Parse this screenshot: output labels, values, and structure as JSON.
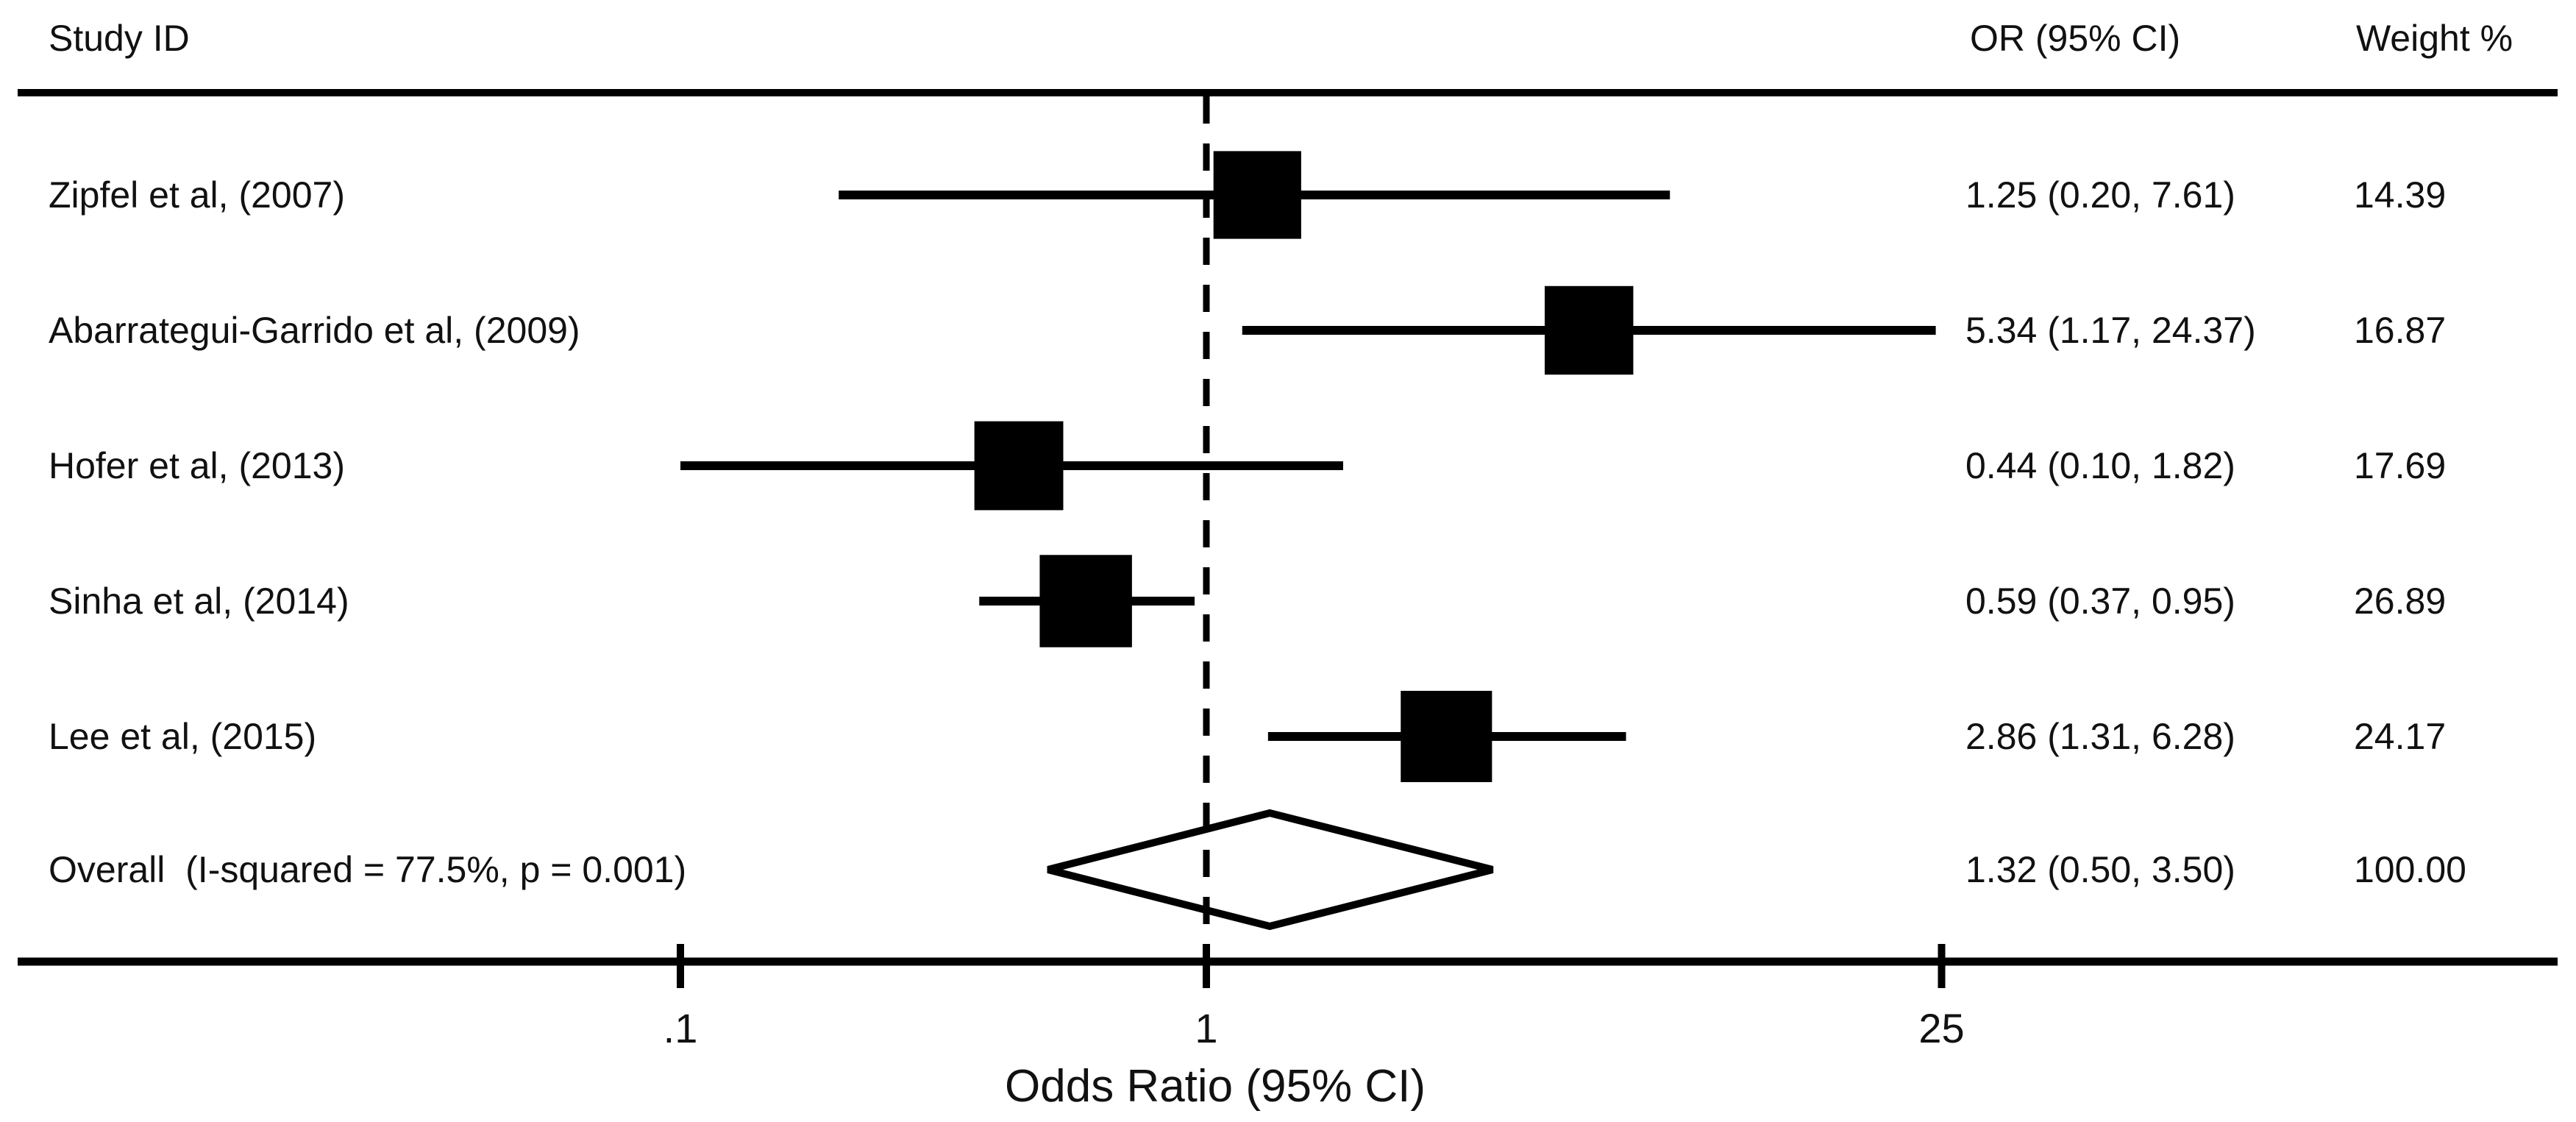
{
  "chart_data": {
    "type": "forest",
    "x_scale": "log10",
    "xlabel": "Odds Ratio (95% CI)",
    "x_ticks": [
      0.1,
      1,
      25
    ],
    "x_tick_labels": [
      ".1",
      "1",
      "25"
    ],
    "null_line_value": 1,
    "columns_labels": {
      "study": "Study ID",
      "or_ci": "OR (95% CI)",
      "weight": "Weight %"
    },
    "rows": [
      {
        "study": "Zipfel et al, (2007)",
        "or": 1.25,
        "ci_low": 0.2,
        "ci_high": 7.61,
        "or_ci_label": "1.25 (0.20, 7.61)",
        "weight": 14.39,
        "weight_label": "14.39"
      },
      {
        "study": "Abarrategui-Garrido et al, (2009)",
        "or": 5.34,
        "ci_low": 1.17,
        "ci_high": 24.37,
        "or_ci_label": "5.34 (1.17, 24.37)",
        "weight": 16.87,
        "weight_label": "16.87"
      },
      {
        "study": "Hofer et al, (2013)",
        "or": 0.44,
        "ci_low": 0.1,
        "ci_high": 1.82,
        "or_ci_label": "0.44 (0.10, 1.82)",
        "weight": 17.69,
        "weight_label": "17.69"
      },
      {
        "study": "Sinha et al, (2014)",
        "or": 0.59,
        "ci_low": 0.37,
        "ci_high": 0.95,
        "or_ci_label": "0.59 (0.37, 0.95)",
        "weight": 26.89,
        "weight_label": "26.89"
      },
      {
        "study": "Lee et al, (2015)",
        "or": 2.86,
        "ci_low": 1.31,
        "ci_high": 6.28,
        "or_ci_label": "2.86 (1.31, 6.28)",
        "weight": 24.17,
        "weight_label": "24.17"
      }
    ],
    "overall": {
      "study": "Overall  (I-squared = 77.5%, p = 0.001)",
      "or": 1.32,
      "ci_low": 0.5,
      "ci_high": 3.5,
      "or_ci_label": "1.32 (0.50, 3.50)",
      "weight": 100.0,
      "weight_label": "100.00",
      "i_squared": "77.5%",
      "p_value": "0.001"
    },
    "ink_color": "#000000",
    "background_color": "#ffffff"
  }
}
